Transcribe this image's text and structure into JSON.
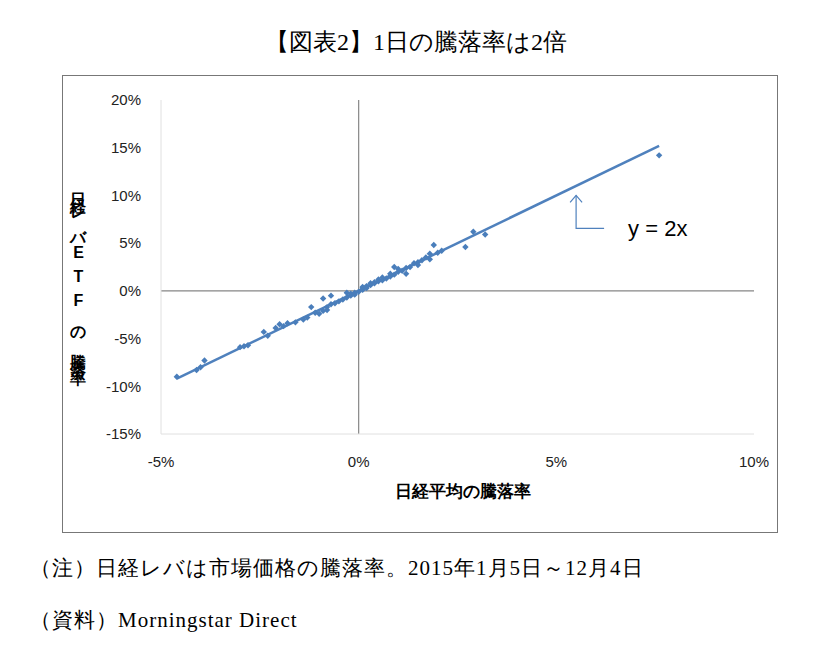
{
  "chart_data": {
    "type": "scatter",
    "title": "【図表2】1日の騰落率は2倍",
    "x_label": "日経平均の騰落率",
    "y_label": "日経レバETFの騰落率",
    "xlim": [
      -5,
      10
    ],
    "ylim": [
      -15,
      20
    ],
    "xticks": [
      {
        "value": -5,
        "label": "-5%"
      },
      {
        "value": 0,
        "label": "0%"
      },
      {
        "value": 5,
        "label": "5%"
      },
      {
        "value": 10,
        "label": "10%"
      }
    ],
    "yticks": [
      {
        "value": -15,
        "label": "-15%"
      },
      {
        "value": -10,
        "label": "-10%"
      },
      {
        "value": -5,
        "label": "-5%"
      },
      {
        "value": 0,
        "label": "0%"
      },
      {
        "value": 5,
        "label": "5%"
      },
      {
        "value": 10,
        "label": "10%"
      },
      {
        "value": 15,
        "label": "15%"
      },
      {
        "value": 20,
        "label": "20%"
      }
    ],
    "grid": false,
    "series": [
      {
        "type": "scatter",
        "color": "#4a7ebb",
        "marker": "diamond",
        "x": [
          7.6,
          -4.6,
          -4.1,
          -4.0,
          -3.9,
          -3.0,
          -2.9,
          -2.8,
          -2.4,
          -2.3,
          -2.1,
          -2.0,
          -1.9,
          -1.8,
          -1.6,
          -1.4,
          -1.3,
          -1.2,
          -1.1,
          -1.0,
          -0.9,
          -0.9,
          -0.8,
          -0.8,
          -0.7,
          -0.7,
          -0.6,
          -0.5,
          -0.4,
          -0.3,
          -0.3,
          -0.2,
          -0.2,
          -0.1,
          -0.1,
          0.0,
          0.1,
          0.1,
          0.1,
          0.2,
          0.2,
          0.3,
          0.3,
          0.4,
          0.4,
          0.5,
          0.5,
          0.6,
          0.6,
          0.7,
          0.8,
          0.8,
          0.9,
          0.9,
          1.0,
          1.0,
          1.1,
          1.2,
          1.2,
          1.3,
          1.4,
          1.5,
          1.5,
          1.6,
          1.7,
          1.8,
          1.8,
          1.9,
          2.0,
          2.1,
          2.7,
          2.9,
          3.2
        ],
        "values": [
          14.2,
          -9.0,
          -8.3,
          -8.0,
          -7.3,
          -5.9,
          -5.8,
          -5.7,
          -4.3,
          -4.7,
          -3.9,
          -3.5,
          -3.7,
          -3.4,
          -3.3,
          -3.0,
          -2.8,
          -1.7,
          -2.3,
          -2.4,
          -0.8,
          -2.1,
          -1.7,
          -2.0,
          -0.5,
          -1.4,
          -1.3,
          -1.1,
          -0.9,
          -0.7,
          -0.2,
          -0.5,
          -0.3,
          -0.2,
          -0.4,
          -0.1,
          0.3,
          0.1,
          0.4,
          0.5,
          0.3,
          0.6,
          0.8,
          0.8,
          0.9,
          1.0,
          1.2,
          1.1,
          1.4,
          1.3,
          1.5,
          1.8,
          2.5,
          1.7,
          2.0,
          2.3,
          2.1,
          2.4,
          1.8,
          2.5,
          2.9,
          3.0,
          2.7,
          3.2,
          3.5,
          3.3,
          3.9,
          4.8,
          4.0,
          4.2,
          4.6,
          6.2,
          5.9
        ]
      },
      {
        "type": "line",
        "color": "#4f81bd",
        "line_style": "solid",
        "x": [
          -4.6,
          7.6
        ],
        "values": [
          -9.2,
          15.2
        ]
      }
    ],
    "annotations": [
      {
        "text": "y = 2x",
        "x": 5.5,
        "y": 10
      }
    ],
    "notes": [
      "（注）日経レバは市場価格の騰落率。2015年1月5日～12月4日",
      "（資料）Morningstar Direct"
    ]
  }
}
